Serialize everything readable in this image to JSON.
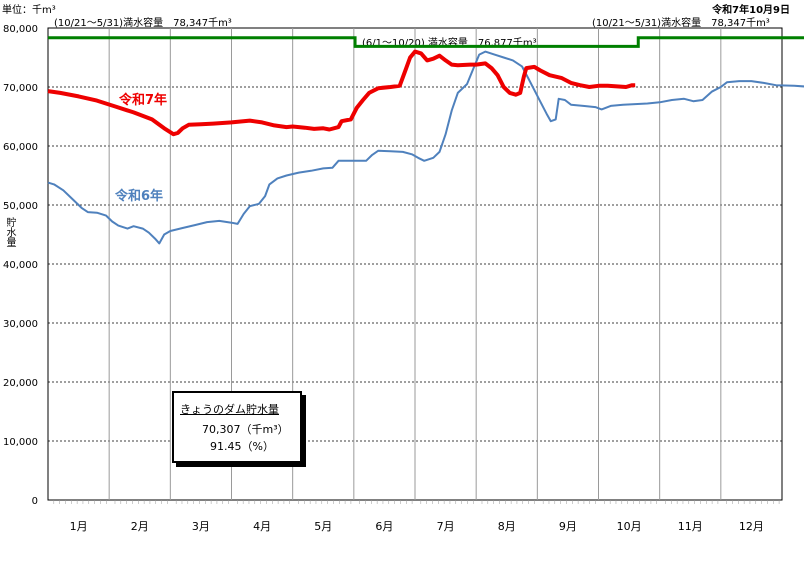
{
  "header": {
    "unit": "単位：千m³",
    "date": "令和7年10月9日",
    "cap_left": "(10/21～5/31)満水容量　78,347千m³",
    "cap_mid": "(6/1～10/20) 満水容量　76,877千m³",
    "cap_right": "(10/21～5/31)満水容量　78,347千m³"
  },
  "infobox": {
    "title": "きょうのダム貯水量",
    "volume": "70,307（千m³）",
    "percent": "91.45（%）"
  },
  "chart_data": {
    "type": "line",
    "ylabel": "貯水量",
    "ylim": [
      0,
      80000
    ],
    "yticks": [
      "0",
      "10,000",
      "20,000",
      "30,000",
      "40,000",
      "50,000",
      "60,000",
      "70,000",
      "80,000"
    ],
    "months": [
      "1月",
      "2月",
      "3月",
      "4月",
      "5月",
      "6月",
      "7月",
      "8月",
      "9月",
      "10月",
      "11月",
      "12月"
    ],
    "series": [
      {
        "name": "令和7年",
        "color": "#ee0000",
        "points": [
          [
            0,
            69300
          ],
          [
            0.2,
            69000
          ],
          [
            0.5,
            68400
          ],
          [
            0.8,
            67700
          ],
          [
            1.1,
            66700
          ],
          [
            1.4,
            65700
          ],
          [
            1.7,
            64500
          ],
          [
            1.9,
            63000
          ],
          [
            2.05,
            62000
          ],
          [
            2.12,
            62200
          ],
          [
            2.2,
            63000
          ],
          [
            2.3,
            63600
          ],
          [
            2.5,
            63700
          ],
          [
            2.7,
            63800
          ],
          [
            3.0,
            64000
          ],
          [
            3.3,
            64300
          ],
          [
            3.5,
            64000
          ],
          [
            3.7,
            63500
          ],
          [
            3.9,
            63200
          ],
          [
            4.0,
            63300
          ],
          [
            4.2,
            63100
          ],
          [
            4.35,
            62900
          ],
          [
            4.5,
            63000
          ],
          [
            4.6,
            62800
          ],
          [
            4.75,
            63200
          ],
          [
            4.8,
            64200
          ],
          [
            4.95,
            64500
          ],
          [
            5.05,
            66500
          ],
          [
            5.15,
            67800
          ],
          [
            5.25,
            69000
          ],
          [
            5.4,
            69800
          ],
          [
            5.6,
            70000
          ],
          [
            5.75,
            70200
          ],
          [
            5.85,
            73000
          ],
          [
            5.92,
            75000
          ],
          [
            6.0,
            76000
          ],
          [
            6.1,
            75700
          ],
          [
            6.2,
            74500
          ],
          [
            6.3,
            74800
          ],
          [
            6.4,
            75300
          ],
          [
            6.5,
            74500
          ],
          [
            6.6,
            73800
          ],
          [
            6.7,
            73700
          ],
          [
            6.9,
            73800
          ],
          [
            7.0,
            73800
          ],
          [
            7.15,
            74000
          ],
          [
            7.25,
            73200
          ],
          [
            7.35,
            72000
          ],
          [
            7.45,
            70000
          ],
          [
            7.55,
            69000
          ],
          [
            7.65,
            68700
          ],
          [
            7.72,
            69000
          ],
          [
            7.78,
            71800
          ],
          [
            7.82,
            73200
          ],
          [
            7.95,
            73400
          ],
          [
            8.05,
            72800
          ],
          [
            8.2,
            72000
          ],
          [
            8.4,
            71500
          ],
          [
            8.55,
            70700
          ],
          [
            8.7,
            70300
          ],
          [
            8.85,
            70000
          ],
          [
            9.0,
            70200
          ],
          [
            9.15,
            70200
          ],
          [
            9.3,
            70100
          ],
          [
            9.45,
            70000
          ],
          [
            9.55,
            70300
          ],
          [
            9.6,
            70300
          ]
        ]
      },
      {
        "name": "令和6年",
        "color": "#4f81bd",
        "points": [
          [
            0,
            53800
          ],
          [
            0.1,
            53500
          ],
          [
            0.25,
            52500
          ],
          [
            0.4,
            51000
          ],
          [
            0.55,
            49500
          ],
          [
            0.65,
            48800
          ],
          [
            0.8,
            48700
          ],
          [
            0.95,
            48200
          ],
          [
            1.05,
            47200
          ],
          [
            1.15,
            46500
          ],
          [
            1.3,
            46000
          ],
          [
            1.4,
            46400
          ],
          [
            1.55,
            46000
          ],
          [
            1.65,
            45300
          ],
          [
            1.75,
            44300
          ],
          [
            1.82,
            43500
          ],
          [
            1.9,
            45000
          ],
          [
            2.0,
            45600
          ],
          [
            2.2,
            46100
          ],
          [
            2.4,
            46600
          ],
          [
            2.6,
            47100
          ],
          [
            2.8,
            47300
          ],
          [
            3.0,
            47000
          ],
          [
            3.1,
            46800
          ],
          [
            3.2,
            48500
          ],
          [
            3.3,
            49800
          ],
          [
            3.45,
            50200
          ],
          [
            3.55,
            51500
          ],
          [
            3.62,
            53500
          ],
          [
            3.75,
            54500
          ],
          [
            3.9,
            55000
          ],
          [
            4.1,
            55500
          ],
          [
            4.3,
            55800
          ],
          [
            4.5,
            56200
          ],
          [
            4.65,
            56300
          ],
          [
            4.75,
            57500
          ],
          [
            5.0,
            57500
          ],
          [
            5.2,
            57500
          ],
          [
            5.3,
            58500
          ],
          [
            5.4,
            59200
          ],
          [
            5.6,
            59100
          ],
          [
            5.8,
            59000
          ],
          [
            5.95,
            58600
          ],
          [
            6.05,
            58000
          ],
          [
            6.15,
            57500
          ],
          [
            6.3,
            58000
          ],
          [
            6.4,
            59000
          ],
          [
            6.5,
            62000
          ],
          [
            6.6,
            66000
          ],
          [
            6.7,
            69000
          ],
          [
            6.85,
            70500
          ],
          [
            6.95,
            73000
          ],
          [
            7.05,
            75500
          ],
          [
            7.15,
            76000
          ],
          [
            7.3,
            75500
          ],
          [
            7.45,
            75000
          ],
          [
            7.6,
            74500
          ],
          [
            7.75,
            73500
          ],
          [
            7.85,
            71500
          ],
          [
            7.95,
            69500
          ],
          [
            8.05,
            67500
          ],
          [
            8.15,
            65500
          ],
          [
            8.22,
            64200
          ],
          [
            8.3,
            64500
          ],
          [
            8.35,
            68000
          ],
          [
            8.45,
            67800
          ],
          [
            8.55,
            67000
          ],
          [
            8.75,
            66800
          ],
          [
            8.95,
            66600
          ],
          [
            9.05,
            66200
          ],
          [
            9.2,
            66800
          ],
          [
            9.4,
            67000
          ],
          [
            9.6,
            67100
          ],
          [
            9.8,
            67200
          ],
          [
            10.0,
            67400
          ],
          [
            10.2,
            67800
          ],
          [
            10.4,
            68000
          ],
          [
            10.55,
            67600
          ],
          [
            10.7,
            67800
          ],
          [
            10.85,
            69200
          ],
          [
            11.0,
            70000
          ],
          [
            11.1,
            70800
          ],
          [
            11.3,
            71000
          ],
          [
            11.5,
            71000
          ],
          [
            11.7,
            70700
          ],
          [
            11.9,
            70300
          ],
          [
            12.2,
            70200
          ],
          [
            12.5,
            70000
          ],
          [
            12.8,
            69700
          ],
          [
            13.0,
            69500
          ],
          [
            13.2,
            69400
          ]
        ]
      }
    ],
    "capacity_line": {
      "color": "#008000",
      "steps": [
        [
          0,
          78347
        ],
        [
          5.02,
          78347
        ],
        [
          5.02,
          76877
        ],
        [
          9.65,
          76877
        ],
        [
          9.65,
          78347
        ],
        [
          13.2,
          78347
        ]
      ]
    },
    "grid": true
  }
}
